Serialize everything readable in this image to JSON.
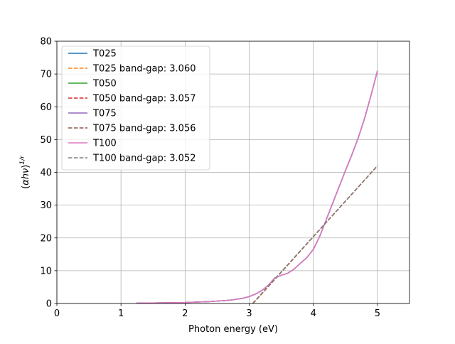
{
  "chart_data": {
    "type": "line",
    "title": "",
    "xlabel": "Photon energy (eV)",
    "ylabel": {
      "prefix": "(",
      "alpha": "α",
      "h": "h",
      "nu": "ν",
      "suffix": ")",
      "exponent": "1/r"
    },
    "xlim": [
      0,
      5.5
    ],
    "ylim": [
      0,
      80
    ],
    "xticks": [
      0,
      1,
      2,
      3,
      4,
      5
    ],
    "yticks": [
      0,
      10,
      20,
      30,
      40,
      50,
      60,
      70,
      80
    ],
    "grid": true,
    "legend_position": "upper-left",
    "series": [
      {
        "name": "T025",
        "style": "solid",
        "color": "#1f77b4",
        "x": [
          1.24,
          1.5,
          2.0,
          2.4,
          2.7,
          2.9,
          3.0,
          3.1,
          3.2,
          3.3,
          3.4,
          3.5,
          3.6,
          3.7,
          3.8,
          3.9,
          4.0,
          4.1,
          4.2,
          4.3,
          4.4,
          4.5,
          4.6,
          4.7,
          4.8,
          4.9,
          5.0
        ],
        "y": [
          0.1,
          0.15,
          0.3,
          0.6,
          1.0,
          1.6,
          2.1,
          2.9,
          4.0,
          5.6,
          7.8,
          8.6,
          9.2,
          10.5,
          12.3,
          14.0,
          16.5,
          20.5,
          25.5,
          30.5,
          35.5,
          40.5,
          45.3,
          50.5,
          56.5,
          63.5,
          71.0
        ]
      },
      {
        "name": "T025  band-gap: 3.060",
        "style": "dashed",
        "color": "#ff7f0e",
        "x": [
          3.06,
          5.0
        ],
        "y": [
          0.0,
          42.0
        ]
      },
      {
        "name": "T050",
        "style": "solid",
        "color": "#2ca02c",
        "x": [
          1.24,
          1.5,
          2.0,
          2.4,
          2.7,
          2.9,
          3.0,
          3.1,
          3.2,
          3.3,
          3.4,
          3.5,
          3.6,
          3.7,
          3.8,
          3.9,
          4.0,
          4.1,
          4.2,
          4.3,
          4.4,
          4.5,
          4.6,
          4.7,
          4.8,
          4.9,
          5.0
        ],
        "y": [
          0.1,
          0.15,
          0.3,
          0.6,
          1.0,
          1.6,
          2.1,
          2.9,
          4.0,
          5.6,
          7.8,
          8.6,
          9.2,
          10.5,
          12.3,
          14.0,
          16.5,
          20.5,
          25.5,
          30.5,
          35.5,
          40.5,
          45.3,
          50.5,
          56.5,
          63.5,
          71.0
        ]
      },
      {
        "name": "T050  band-gap: 3.057",
        "style": "dashed",
        "color": "#d62728",
        "x": [
          3.057,
          5.0
        ],
        "y": [
          0.0,
          42.0
        ]
      },
      {
        "name": "T075",
        "style": "solid",
        "color": "#9467bd",
        "x": [
          1.24,
          1.5,
          2.0,
          2.4,
          2.7,
          2.9,
          3.0,
          3.1,
          3.2,
          3.3,
          3.4,
          3.5,
          3.6,
          3.7,
          3.8,
          3.9,
          4.0,
          4.1,
          4.2,
          4.3,
          4.4,
          4.5,
          4.6,
          4.7,
          4.8,
          4.9,
          5.0
        ],
        "y": [
          0.1,
          0.15,
          0.3,
          0.6,
          1.0,
          1.6,
          2.1,
          2.9,
          4.0,
          5.6,
          7.8,
          8.6,
          9.2,
          10.5,
          12.3,
          14.0,
          16.5,
          20.5,
          25.5,
          30.5,
          35.5,
          40.5,
          45.3,
          50.5,
          56.5,
          63.5,
          71.0
        ]
      },
      {
        "name": "T075  band-gap: 3.056",
        "style": "dashed",
        "color": "#8c564b",
        "x": [
          3.056,
          5.0
        ],
        "y": [
          0.0,
          42.0
        ]
      },
      {
        "name": "T100",
        "style": "solid",
        "color": "#e377c2",
        "x": [
          1.24,
          1.5,
          2.0,
          2.4,
          2.7,
          2.9,
          3.0,
          3.1,
          3.2,
          3.3,
          3.4,
          3.5,
          3.6,
          3.7,
          3.8,
          3.9,
          4.0,
          4.1,
          4.2,
          4.3,
          4.4,
          4.5,
          4.6,
          4.7,
          4.8,
          4.9,
          5.0
        ],
        "y": [
          0.1,
          0.15,
          0.3,
          0.6,
          1.0,
          1.6,
          2.1,
          2.9,
          4.0,
          5.6,
          7.8,
          8.6,
          9.2,
          10.5,
          12.3,
          14.0,
          16.5,
          20.5,
          25.5,
          30.5,
          35.5,
          40.5,
          45.3,
          50.5,
          56.5,
          63.5,
          71.0
        ]
      },
      {
        "name": "T100  band-gap: 3.052",
        "style": "dashed",
        "color": "#7f7f7f",
        "x": [
          3.052,
          5.0
        ],
        "y": [
          0.0,
          42.0
        ]
      }
    ]
  }
}
